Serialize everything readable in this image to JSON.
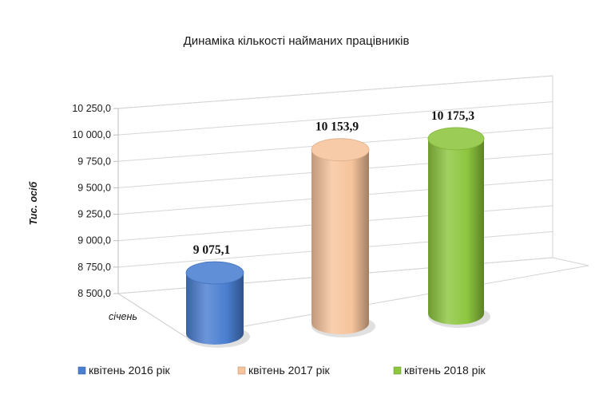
{
  "chart_data": {
    "type": "bar",
    "title": "Динаміка кількості найманих працівників",
    "ylabel": "Тис. осіб",
    "xlabel": "",
    "categories": [
      "січень"
    ],
    "series": [
      {
        "name": "квітень 2016 рік",
        "values": [
          9075.1
        ],
        "label": "9 075,1",
        "color": "#4a7fd1"
      },
      {
        "name": "квітень 2017 рік",
        "values": [
          10153.9
        ],
        "label": "10 153,9",
        "color": "#f6c49c"
      },
      {
        "name": "квітень 2018 рік",
        "values": [
          10175.3
        ],
        "label": "10 175,3",
        "color": "#8dc63f"
      }
    ],
    "yticks": [
      8500,
      8750,
      9000,
      9250,
      9500,
      9750,
      10000,
      10250
    ],
    "ytick_labels": [
      "8 500,0",
      "8 750,0",
      "9 000,0",
      "9 250,0",
      "9 500,0",
      "9 750,0",
      "10 000,0",
      "10 250,0"
    ],
    "ylim": [
      8500,
      10250
    ],
    "grid": true,
    "legend": "bottom",
    "style": "3d-cylinder"
  }
}
